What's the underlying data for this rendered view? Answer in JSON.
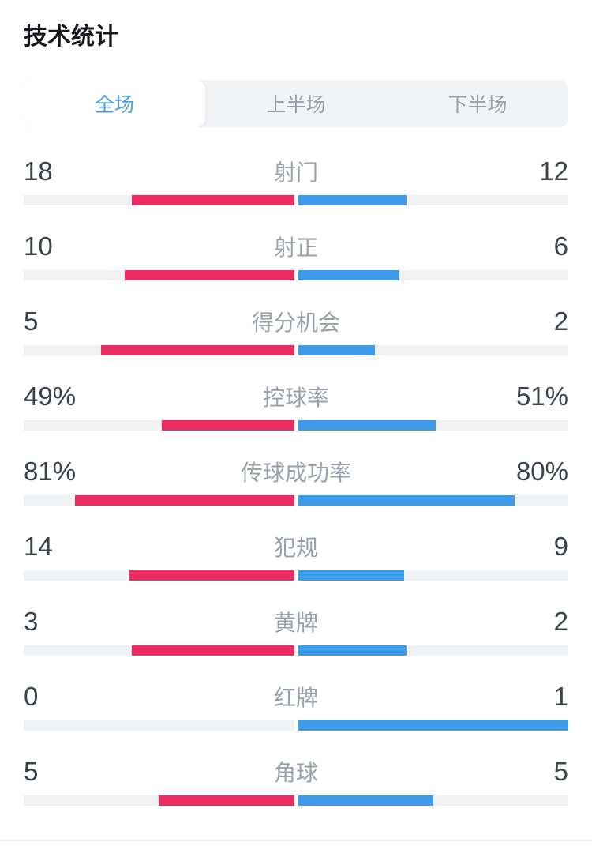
{
  "page": {
    "title": "技术统计"
  },
  "tabs": {
    "items": [
      {
        "label": "全场",
        "active": true
      },
      {
        "label": "上半场",
        "active": false
      },
      {
        "label": "下半场",
        "active": false
      }
    ]
  },
  "colors": {
    "home": "#ED2B63",
    "away": "#3E9BE9",
    "track": "#F1F2F3",
    "tab_active": "#4C9FDB",
    "tab_inactive": "#9BA1AB",
    "value_text": "#3D434B",
    "label_text": "#9AA1A8"
  },
  "stats": {
    "rows": [
      {
        "label": "射门",
        "home": "18",
        "away": "12"
      },
      {
        "label": "射正",
        "home": "10",
        "away": "6"
      },
      {
        "label": "得分机会",
        "home": "5",
        "away": "2"
      },
      {
        "label": "控球率",
        "home": "49%",
        "away": "51%"
      },
      {
        "label": "传球成功率",
        "home": "81%",
        "away": "80%"
      },
      {
        "label": "犯规",
        "home": "14",
        "away": "9"
      },
      {
        "label": "黄牌",
        "home": "3",
        "away": "2"
      },
      {
        "label": "红牌",
        "home": "0",
        "away": "1"
      },
      {
        "label": "角球",
        "home": "5",
        "away": "5"
      }
    ]
  },
  "chart_data": {
    "type": "bar",
    "orientation": "horizontal-diverging-from-center",
    "title": "技术统计",
    "categories": [
      "射门",
      "射正",
      "得分机会",
      "控球率",
      "传球成功率",
      "犯规",
      "黄牌",
      "红牌",
      "角球"
    ],
    "series": [
      {
        "name": "left-team",
        "color": "#ED2B63",
        "values": [
          18,
          10,
          5,
          49,
          81,
          14,
          3,
          0,
          5
        ]
      },
      {
        "name": "right-team",
        "color": "#3E9BE9",
        "values": [
          12,
          6,
          2,
          51,
          80,
          9,
          2,
          1,
          5
        ]
      }
    ],
    "percent_categories": [
      "控球率",
      "传球成功率"
    ],
    "bar_scale": "count rows: value/(left+right) of half-track; percent rows: value/100 of half-track",
    "legend": "none",
    "grid": "off"
  }
}
